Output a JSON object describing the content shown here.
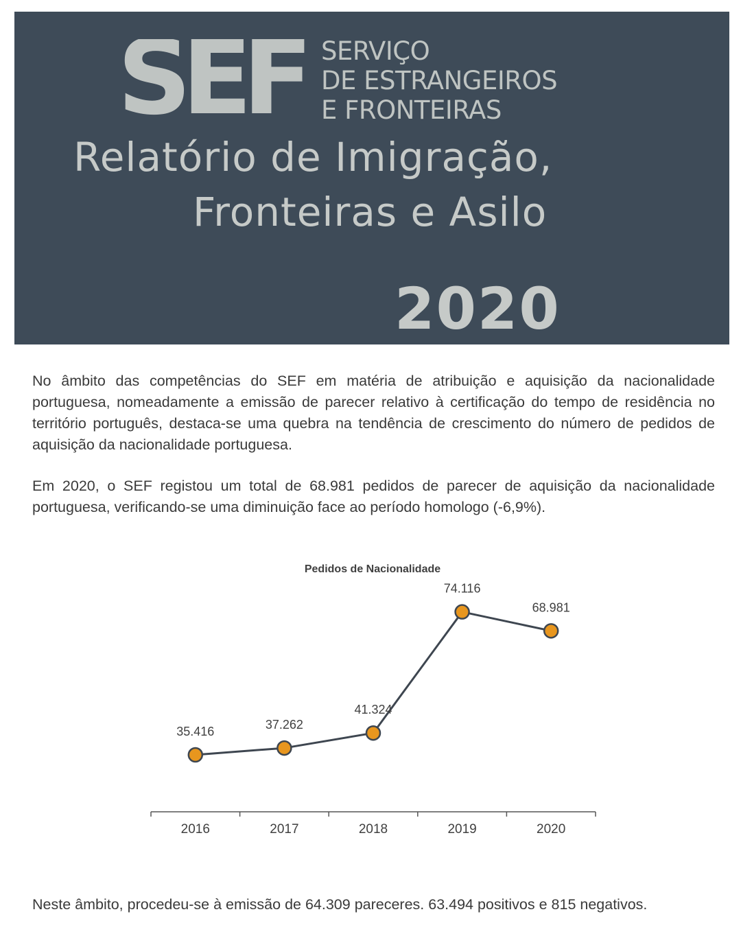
{
  "header": {
    "logo_text": "SEF",
    "agency_lines": [
      "SERVIÇO",
      "DE ESTRANGEIROS",
      "E FRONTEIRAS"
    ],
    "title_line1": "Relatório de Imigração,",
    "title_line2": "Fronteiras e Asilo",
    "year": "2020",
    "colors": {
      "background": "#3e4b58",
      "text": "#c6cac8"
    }
  },
  "body": {
    "paragraph1": "No âmbito das competências do SEF em matéria de atribuição e aquisição da nacionalidade portuguesa, nomeadamente a emissão de parecer relativo à certificação do tempo de residência no território português, destaca-se uma quebra na tendência de crescimento do número de pedidos de aquisição da nacionalidade portuguesa.",
    "paragraph2": "Em 2020, o SEF registou um total de 68.981 pedidos de parecer de aquisição da nacionalidade portuguesa, verificando-se uma diminuição face ao período homologo (-6,9%).",
    "paragraph3": "Neste âmbito, procedeu-se à emissão de 64.309 pareceres. 63.494 positivos e 815 negativos."
  },
  "chart_data": {
    "type": "line",
    "title": "Pedidos de Nacionalidade",
    "categories": [
      "2016",
      "2017",
      "2018",
      "2019",
      "2020"
    ],
    "values": [
      35416,
      37262,
      41324,
      74116,
      68981
    ],
    "data_labels": [
      "35.416",
      "37.262",
      "41.324",
      "74.116",
      "68.981"
    ],
    "ylim": [
      20000,
      80000
    ],
    "grid": false,
    "legend": "none",
    "colors": {
      "line": "#3e4650",
      "marker": "#e8961e",
      "marker_edge": "#3e4650"
    }
  }
}
